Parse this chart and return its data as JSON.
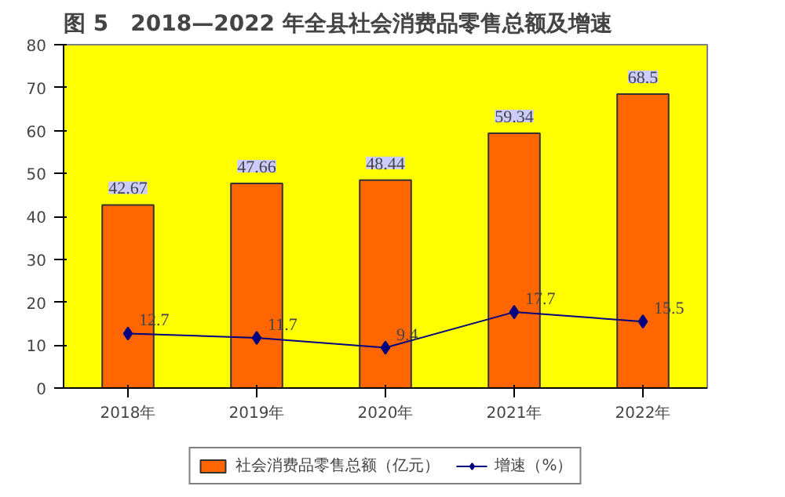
{
  "chart_data": {
    "type": "bar",
    "title": "图 5　2018—2022 年全县社会消费品零售总额及增速",
    "categories": [
      "2018年",
      "2019年",
      "2020年",
      "2021年",
      "2022年"
    ],
    "series": [
      {
        "name": "社会消费品零售总额（亿元）",
        "color": "#ff6600",
        "values": [
          42.67,
          47.66,
          48.44,
          59.34,
          68.5
        ]
      },
      {
        "name": "增速（%）",
        "type": "line",
        "color": "#000080",
        "values": [
          12.7,
          11.7,
          9.4,
          17.7,
          15.5
        ]
      }
    ],
    "ylim": [
      0,
      80
    ],
    "yticks": [
      0,
      10,
      20,
      30,
      40,
      50,
      60,
      70,
      80
    ],
    "grid": false,
    "legend": "bottom",
    "data_labels": true,
    "marker": "diamond",
    "line_style": "solid"
  }
}
